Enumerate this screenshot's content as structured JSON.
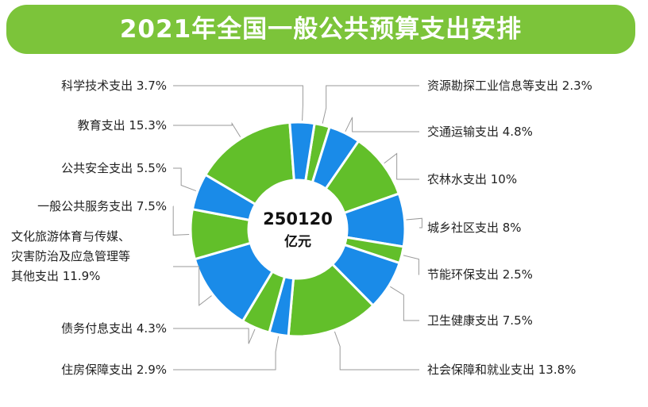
{
  "header": {
    "title": "2021年全国一般公共预算支出安排"
  },
  "center": {
    "value": "250120",
    "unit": "亿元"
  },
  "colors": {
    "banner": "#7cc43a",
    "green": "#62bf2a",
    "blue": "#1a8be8"
  },
  "chart_data": {
    "type": "pie",
    "title": "2021年全国一般公共预算支出安排",
    "total": 250120,
    "total_unit": "亿元",
    "slices": [
      {
        "label": "资源勘探工业信息等支出",
        "value": 2.3,
        "text": "资源勘探工业信息等支出 2.3%",
        "color": "green"
      },
      {
        "label": "交通运输支出",
        "value": 4.8,
        "text": "交通运输支出 4.8%",
        "color": "blue"
      },
      {
        "label": "农林水支出",
        "value": 10,
        "text": "农林水支出 10%",
        "color": "green"
      },
      {
        "label": "城乡社区支出",
        "value": 8,
        "text": "城乡社区支出 8%",
        "color": "blue"
      },
      {
        "label": "节能环保支出",
        "value": 2.5,
        "text": "节能环保支出 2.5%",
        "color": "green"
      },
      {
        "label": "卫生健康支出",
        "value": 7.5,
        "text": "卫生健康支出 7.5%",
        "color": "blue"
      },
      {
        "label": "社会保障和就业支出",
        "value": 13.8,
        "text": "社会保障和就业支出 13.8%",
        "color": "green"
      },
      {
        "label": "住房保障支出",
        "value": 2.9,
        "text": "住房保障支出 2.9%",
        "color": "blue"
      },
      {
        "label": "债务付息支出",
        "value": 4.3,
        "text": "债务付息支出 4.3%",
        "color": "green"
      },
      {
        "label": "文化旅游体育与传媒、灾害防治及应急管理等其他支出",
        "value": 11.9,
        "text_lines": [
          "文化旅游体育与传媒、",
          "灾害防治及应急管理等",
          "其他支出 11.9%"
        ],
        "color": "blue"
      },
      {
        "label": "一般公共服务支出",
        "value": 7.5,
        "text": "一般公共服务支出 7.5%",
        "color": "green"
      },
      {
        "label": "公共安全支出",
        "value": 5.5,
        "text": "公共安全支出 5.5%",
        "color": "blue"
      },
      {
        "label": "教育支出",
        "value": 15.3,
        "text": "教育支出 15.3%",
        "color": "green"
      },
      {
        "label": "科学技术支出",
        "value": 3.7,
        "text": "科学技术支出 3.7%",
        "color": "blue"
      }
    ]
  }
}
